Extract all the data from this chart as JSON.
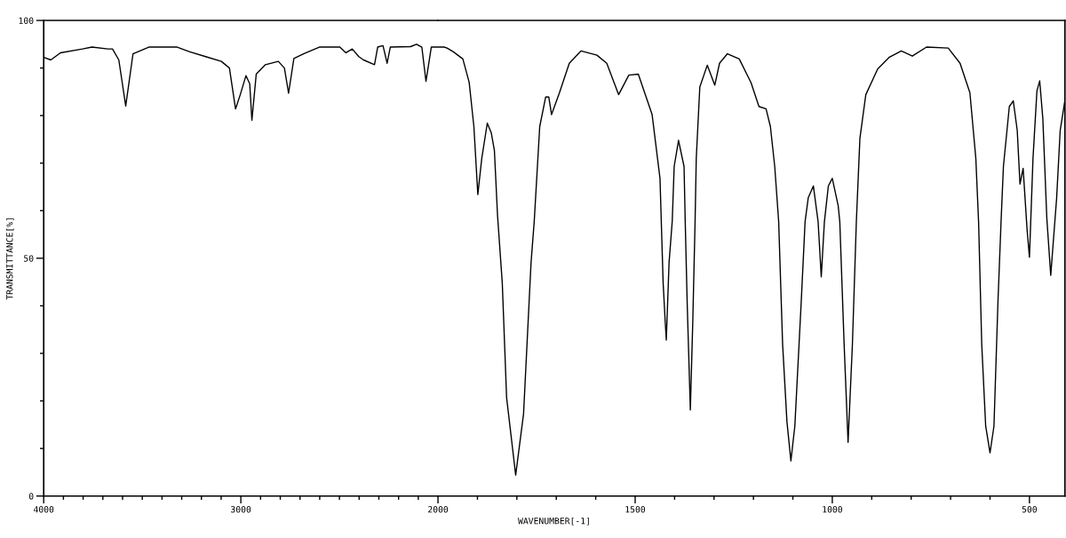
{
  "chart_data": [
    {
      "type": "line",
      "ylabel": "TRANSMITTANCE[%]",
      "xlim": [
        4000,
        2000
      ],
      "ylim": [
        0,
        100
      ],
      "xticks": [
        4000,
        {
          "value": 3900,
          "label": null
        },
        {
          "value": 3800,
          "label": null
        },
        {
          "value": 3700,
          "label": null
        },
        {
          "value": 3600,
          "label": null
        },
        {
          "value": 3500,
          "label": null
        },
        {
          "value": 3400,
          "label": null
        },
        {
          "value": 3300,
          "label": null
        },
        {
          "value": 3200,
          "label": null
        },
        {
          "value": 3100,
          "label": null
        },
        3000,
        {
          "value": 2900,
          "label": null
        },
        {
          "value": 2800,
          "label": null
        },
        {
          "value": 2700,
          "label": null
        },
        {
          "value": 2600,
          "label": null
        },
        {
          "value": 2500,
          "label": null
        },
        {
          "value": 2400,
          "label": null
        },
        {
          "value": 2300,
          "label": null
        },
        {
          "value": 2200,
          "label": null
        },
        {
          "value": 2100,
          "label": null
        },
        2000
      ],
      "yticks": [
        0,
        {
          "value": 10,
          "label": null
        },
        {
          "value": 20,
          "label": null
        },
        {
          "value": 30,
          "label": null
        },
        {
          "value": 40,
          "label": null
        },
        50,
        {
          "value": 60,
          "label": null
        },
        {
          "value": 70,
          "label": null
        },
        {
          "value": 80,
          "label": null
        },
        {
          "value": 90,
          "label": null
        },
        100
      ],
      "x": [
        3996,
        3964,
        3915,
        3803,
        3755,
        3675,
        3651,
        3619,
        3584,
        3547,
        3467,
        3323,
        3259,
        3179,
        3099,
        3058,
        3027,
        3003,
        2974,
        2955,
        2944,
        2922,
        2875,
        2810,
        2779,
        2758,
        2731,
        2682,
        2602,
        2498,
        2467,
        2435,
        2402,
        2378,
        2322,
        2306,
        2279,
        2258,
        2242,
        2139,
        2109,
        2082,
        2061,
        2034,
        2000
      ],
      "series": [
        {
          "color": "#000000",
          "values": [
            92.2,
            91.7,
            93.2,
            94.0,
            94.4,
            94.0,
            94.0,
            91.7,
            82.0,
            93.0,
            94.4,
            94.4,
            93.4,
            92.4,
            91.4,
            90.0,
            81.4,
            84.4,
            88.4,
            86.7,
            79.0,
            88.7,
            90.7,
            91.4,
            90.0,
            84.7,
            92.0,
            93.0,
            94.4,
            94.4,
            93.2,
            94.0,
            92.4,
            91.7,
            90.7,
            94.4,
            94.7,
            91.0,
            94.4,
            94.5,
            95.0,
            94.4,
            87.2,
            94.4,
            94.4
          ]
        }
      ]
    },
    {
      "type": "line",
      "xlabel": "WAVENUMBER[-1]",
      "xlim": [
        2000,
        410
      ],
      "ylim": [
        0,
        100
      ],
      "tick_labels": "x",
      "xticks": [
        {
          "value": 1900,
          "label": null
        },
        {
          "value": 1800,
          "label": null
        },
        {
          "value": 1700,
          "label": null
        },
        {
          "value": 1600,
          "label": null
        },
        1500,
        {
          "value": 1400,
          "label": null
        },
        {
          "value": 1300,
          "label": null
        },
        {
          "value": 1200,
          "label": null
        },
        {
          "value": 1100,
          "label": null
        },
        1000,
        {
          "value": 900,
          "label": null
        },
        {
          "value": 800,
          "label": null
        },
        {
          "value": 700,
          "label": null
        },
        {
          "value": 600,
          "label": null
        },
        500
      ],
      "x": [
        2000,
        1985,
        1977,
        1961,
        1937,
        1921,
        1909,
        1899,
        1889,
        1875,
        1865,
        1857,
        1849,
        1837,
        1826,
        1803,
        1783,
        1764,
        1756,
        1742,
        1727,
        1719,
        1712,
        1692,
        1667,
        1637,
        1597,
        1572,
        1542,
        1516,
        1492,
        1457,
        1437,
        1429,
        1424,
        1421,
        1414,
        1406,
        1401,
        1390,
        1376,
        1373,
        1368,
        1360,
        1354,
        1348,
        1345,
        1336,
        1317,
        1298,
        1286,
        1266,
        1236,
        1206,
        1186,
        1168,
        1157,
        1146,
        1136,
        1126,
        1115,
        1105,
        1095,
        1079,
        1069,
        1061,
        1048,
        1036,
        1033,
        1028,
        1023,
        1020,
        1010,
        1000,
        985,
        981,
        970,
        960,
        949,
        939,
        930,
        915,
        885,
        855,
        825,
        797,
        761,
        706,
        676,
        651,
        636,
        629,
        621,
        611,
        600,
        590,
        580,
        572,
        566,
        551,
        541,
        531,
        524,
        516,
        506,
        500,
        491,
        481,
        474,
        466,
        456,
        446,
        431,
        422,
        411
      ],
      "series": [
        {
          "color": "#000000",
          "values": [
            94.4,
            94.4,
            94.2,
            93.4,
            91.9,
            87.0,
            77.7,
            63.4,
            71.0,
            78.4,
            76.4,
            72.7,
            59.0,
            44.8,
            20.7,
            4.4,
            17.3,
            49.1,
            57.7,
            77.7,
            83.9,
            83.9,
            80.2,
            84.8,
            91.0,
            93.6,
            92.7,
            91.0,
            84.4,
            88.5,
            88.7,
            80.2,
            66.8,
            44.8,
            37.0,
            32.8,
            49.1,
            57.7,
            69.3,
            74.8,
            69.3,
            57.7,
            40.5,
            18.1,
            36.2,
            57.7,
            71.0,
            86.0,
            90.6,
            86.4,
            91.0,
            93.0,
            91.9,
            86.9,
            81.9,
            81.4,
            77.7,
            69.3,
            57.7,
            31.9,
            15.6,
            7.4,
            14.7,
            40.5,
            57.7,
            62.7,
            65.2,
            57.7,
            53.4,
            46.1,
            53.4,
            57.7,
            65.2,
            66.8,
            61.0,
            57.7,
            31.9,
            11.3,
            31.9,
            57.7,
            75.2,
            84.4,
            89.8,
            92.3,
            93.6,
            92.5,
            94.4,
            94.2,
            91.0,
            84.8,
            71.0,
            57.7,
            31.9,
            14.7,
            9.1,
            14.7,
            40.5,
            57.7,
            69.3,
            81.9,
            83.1,
            76.9,
            65.6,
            68.9,
            56.0,
            50.2,
            71.0,
            85.2,
            87.3,
            79.3,
            58.5,
            46.4,
            62.7,
            76.9,
            82.7
          ]
        }
      ]
    }
  ]
}
